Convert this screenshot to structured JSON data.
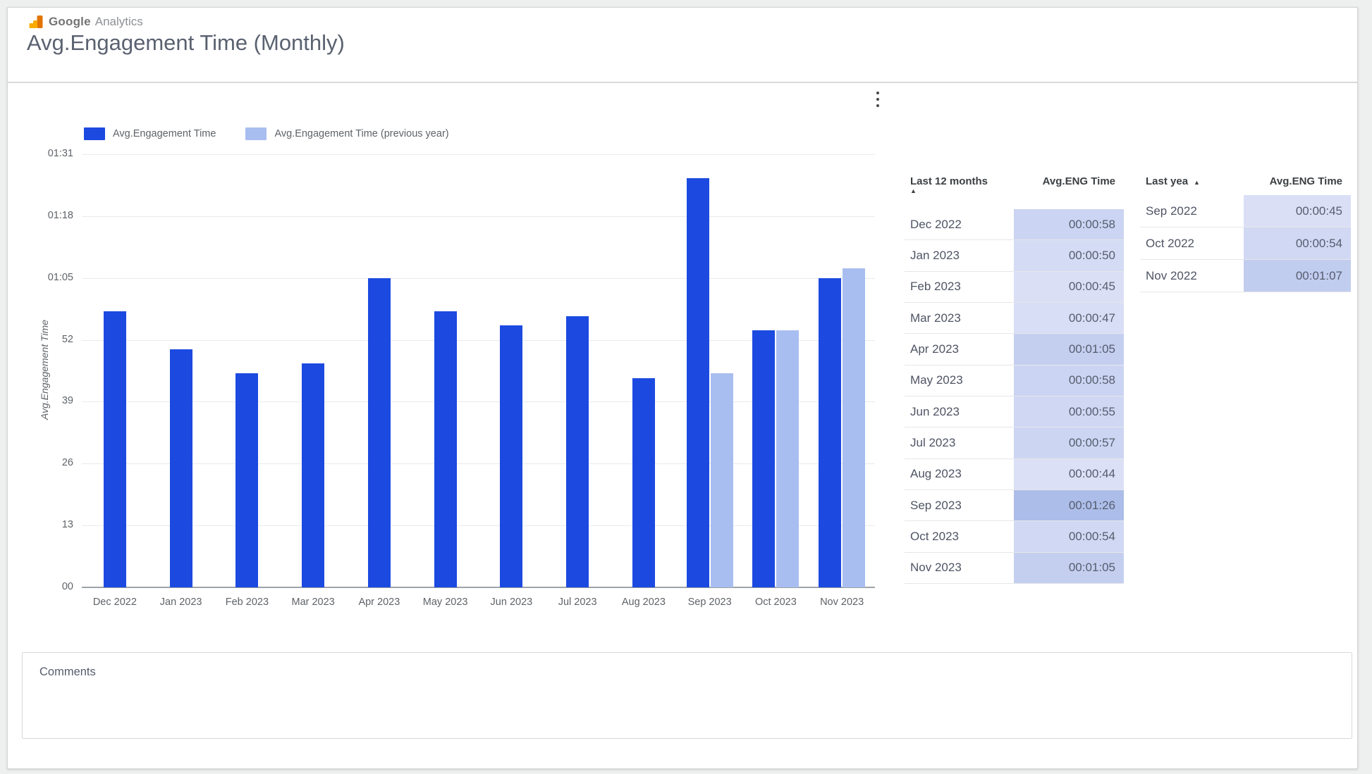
{
  "header": {
    "brand_google": "Google",
    "brand_product": "Analytics",
    "title": "Avg.Engagement Time (Monthly)"
  },
  "chart_data": {
    "type": "bar",
    "title": "Avg.Engagement Time (Monthly)",
    "xlabel": "",
    "ylabel": "Avg.Engagement Time",
    "grid": true,
    "legend_position": "top-left",
    "ylim_seconds": [
      0,
      91
    ],
    "y_ticks": [
      {
        "label": "00",
        "seconds": 0
      },
      {
        "label": "13",
        "seconds": 13
      },
      {
        "label": "26",
        "seconds": 26
      },
      {
        "label": "39",
        "seconds": 39
      },
      {
        "label": "52",
        "seconds": 52
      },
      {
        "label": "01:05",
        "seconds": 65
      },
      {
        "label": "01:18",
        "seconds": 78
      },
      {
        "label": "01:31",
        "seconds": 91
      }
    ],
    "categories": [
      "Dec 2022",
      "Jan 2023",
      "Feb 2023",
      "Mar 2023",
      "Apr 2023",
      "May 2023",
      "Jun 2023",
      "Jul 2023",
      "Aug 2023",
      "Sep 2023",
      "Oct 2023",
      "Nov 2023"
    ],
    "series": [
      {
        "name": "Avg.Engagement Time",
        "color_key": "series_current",
        "values_seconds": [
          58,
          50,
          45,
          47,
          65,
          58,
          55,
          57,
          44,
          86,
          54,
          65
        ]
      },
      {
        "name": "Avg.Engagement Time (previous year)",
        "color_key": "series_previous",
        "values_seconds": [
          null,
          null,
          null,
          null,
          null,
          null,
          null,
          null,
          null,
          45,
          54,
          67
        ]
      }
    ]
  },
  "tables": [
    {
      "header": {
        "label_col": "Last 12 months",
        "sort_icon": "▲",
        "sort_icon_inline": false,
        "value_col": "Avg.ENG Time"
      },
      "rows": [
        {
          "month": "Dec 2022",
          "value": "00:00:58",
          "seconds": 58
        },
        {
          "month": "Jan 2023",
          "value": "00:00:50",
          "seconds": 50
        },
        {
          "month": "Feb 2023",
          "value": "00:00:45",
          "seconds": 45
        },
        {
          "month": "Mar 2023",
          "value": "00:00:47",
          "seconds": 47
        },
        {
          "month": "Apr 2023",
          "value": "00:01:05",
          "seconds": 65
        },
        {
          "month": "May 2023",
          "value": "00:00:58",
          "seconds": 58
        },
        {
          "month": "Jun 2023",
          "value": "00:00:55",
          "seconds": 55
        },
        {
          "month": "Jul 2023",
          "value": "00:00:57",
          "seconds": 57
        },
        {
          "month": "Aug 2023",
          "value": "00:00:44",
          "seconds": 44
        },
        {
          "month": "Sep 2023",
          "value": "00:01:26",
          "seconds": 86
        },
        {
          "month": "Oct 2023",
          "value": "00:00:54",
          "seconds": 54
        },
        {
          "month": "Nov 2023",
          "value": "00:01:05",
          "seconds": 65
        }
      ]
    },
    {
      "header": {
        "label_col": "Last yea",
        "sort_icon": "▲",
        "sort_icon_inline": true,
        "value_col": "Avg.ENG Time"
      },
      "rows": [
        {
          "month": "Sep 2022",
          "value": "00:00:45",
          "seconds": 45
        },
        {
          "month": "Oct 2022",
          "value": "00:00:54",
          "seconds": 54
        },
        {
          "month": "Nov 2022",
          "value": "00:01:07",
          "seconds": 67
        }
      ]
    }
  ],
  "comments": {
    "placeholder": "Comments"
  },
  "colors": {
    "series_current": "#1C4AE0",
    "series_previous": "#A9BEF0",
    "value_cell_min": "#DBE0F6",
    "value_cell_max": "#ACBDE9",
    "logo_orange": "#E37400",
    "logo_yellow": "#F9AB00"
  }
}
